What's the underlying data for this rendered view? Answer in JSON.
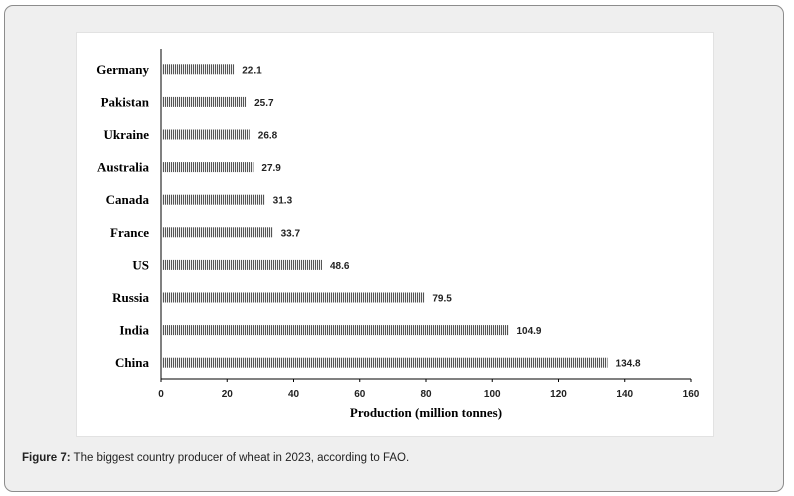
{
  "caption": {
    "label": "Figure 7:",
    "text": " The biggest country producer of wheat in 2023, according to FAO."
  },
  "colors": {
    "bar": "#555555",
    "bar_stripe": "#ffffff",
    "axis": "#000000",
    "frame_bg": "#efefef"
  },
  "chart_data": {
    "type": "bar",
    "orientation": "horizontal",
    "categories": [
      "Germany",
      "Pakistan",
      "Ukraine",
      "Australia",
      "Canada",
      "France",
      "US",
      "Russia",
      "India",
      "China"
    ],
    "values": [
      22.1,
      25.7,
      26.8,
      27.9,
      31.3,
      33.7,
      48.6,
      79.5,
      104.9,
      134.8
    ],
    "data_labels": [
      "22.1",
      "25.7",
      "26.8",
      "27.9",
      "31.3",
      "33.7",
      "48.6",
      "79.5",
      "104.9",
      "134.8"
    ],
    "xlabel": "Production (million tonnes)",
    "xlim": [
      0,
      160
    ],
    "xticks": [
      0,
      20,
      40,
      60,
      80,
      100,
      120,
      140,
      160
    ],
    "xtick_labels": [
      "0",
      "20",
      "40",
      "60",
      "80",
      "100",
      "120",
      "140",
      "160"
    ],
    "grid": false,
    "legend": "none",
    "bar_pattern": "vertical-stripes"
  }
}
